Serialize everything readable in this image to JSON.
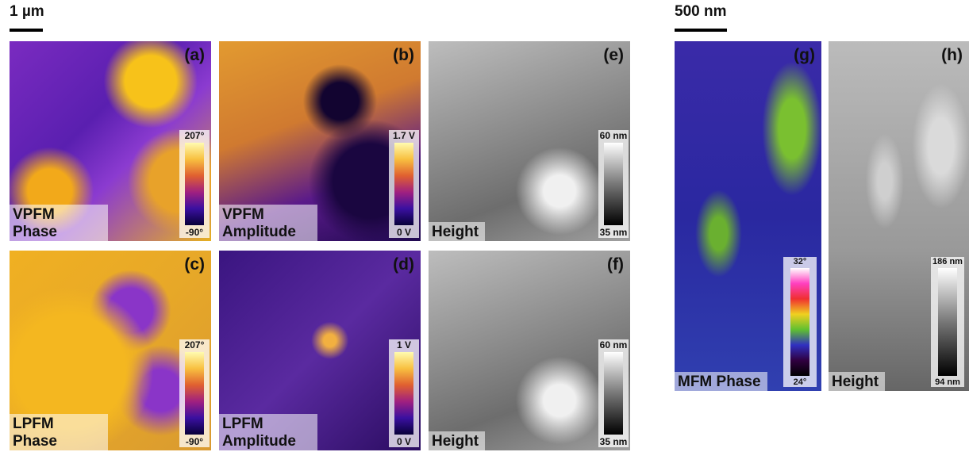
{
  "left_group": {
    "scale_bar": "1 µm",
    "panels": [
      {
        "letter": "(a)",
        "label": "VPFM Phase",
        "colorbar": {
          "max": "207°",
          "min": "-90°"
        }
      },
      {
        "letter": "(b)",
        "label": "VPFM Amplitude",
        "colorbar": {
          "max": "1.7 V",
          "min": "0 V"
        }
      },
      {
        "letter": "(e)",
        "label": "Height",
        "colorbar": {
          "max": "60 nm",
          "min": "35 nm"
        }
      },
      {
        "letter": "(c)",
        "label": "LPFM Phase",
        "colorbar": {
          "max": "207°",
          "min": "-90°"
        }
      },
      {
        "letter": "(d)",
        "label": "LPFM Amplitude",
        "colorbar": {
          "max": "1 V",
          "min": "0 V"
        }
      },
      {
        "letter": "(f)",
        "label": "Height",
        "colorbar": {
          "max": "60 nm",
          "min": "35 nm"
        }
      }
    ]
  },
  "right_group": {
    "scale_bar": "500 nm",
    "panels": [
      {
        "letter": "(g)",
        "label": "MFM Phase",
        "colorbar": {
          "max": "32°",
          "min": "24°"
        }
      },
      {
        "letter": "(h)",
        "label": "Height",
        "colorbar": {
          "max": "186 nm",
          "min": "94 nm"
        }
      }
    ]
  }
}
